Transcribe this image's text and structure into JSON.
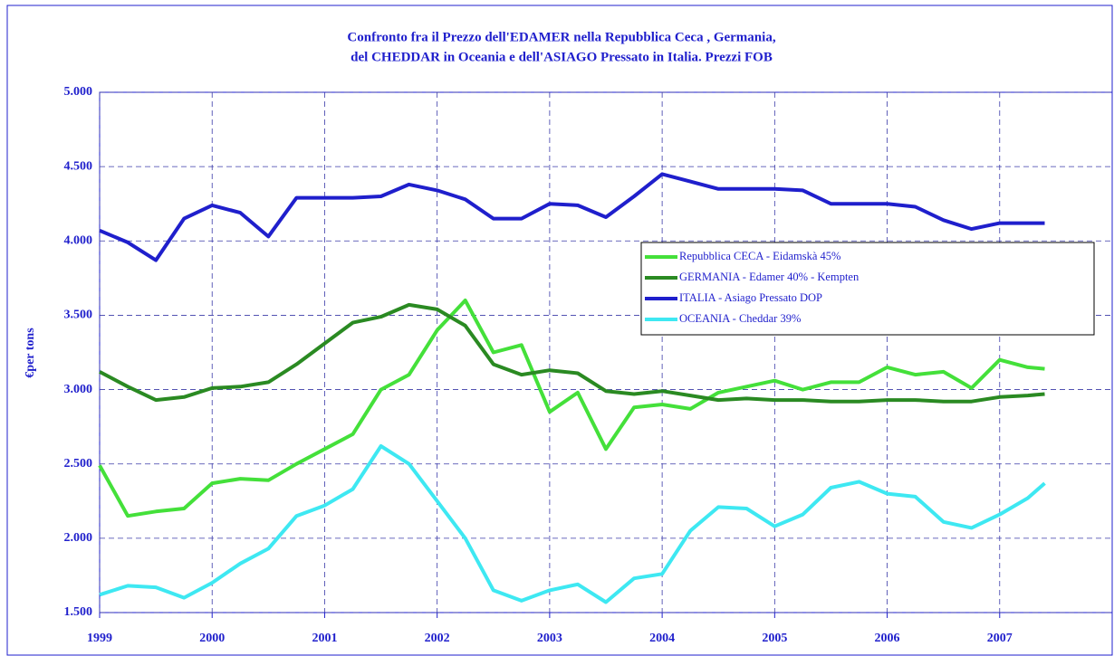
{
  "chart_data": {
    "type": "line",
    "title": [
      "Confronto fra il Prezzo dell'EDAMER nella Repubblica Ceca , Germania,",
      "del CHEDDAR in Oceania  e dell'ASIAGO Pressato in Italia.  Prezzi FOB"
    ],
    "y_label": "€per tons",
    "x": [
      1999,
      1999.25,
      1999.5,
      1999.75,
      2000,
      2000.25,
      2000.5,
      2000.75,
      2001,
      2001.25,
      2001.5,
      2001.75,
      2002,
      2002.25,
      2002.5,
      2002.75,
      2003,
      2003.25,
      2003.5,
      2003.75,
      2004,
      2004.25,
      2004.5,
      2004.75,
      2005,
      2005.25,
      2005.5,
      2005.75,
      2006,
      2006.25,
      2006.5,
      2006.75,
      2007,
      2007.25,
      2007.4
    ],
    "series": [
      {
        "name": "Repubblica CECA - Eidamskà 45%",
        "color": "#44e03a",
        "values": [
          2490,
          2150,
          2180,
          2200,
          2370,
          2400,
          2390,
          2500,
          2600,
          2700,
          3000,
          3100,
          3400,
          3600,
          3250,
          3300,
          2850,
          2980,
          2600,
          2880,
          2900,
          2870,
          2980,
          3020,
          3060,
          3000,
          3050,
          3050,
          3150,
          3100,
          3120,
          3010,
          3200,
          3150,
          3140
        ]
      },
      {
        "name": "GERMANIA - Edamer 40% - Kempten",
        "color": "#2a8a22",
        "values": [
          3120,
          3020,
          2930,
          2950,
          3010,
          3020,
          3050,
          3170,
          3310,
          3450,
          3490,
          3570,
          3540,
          3430,
          3170,
          3100,
          3130,
          3110,
          2990,
          2970,
          2990,
          2960,
          2930,
          2940,
          2930,
          2930,
          2920,
          2920,
          2930,
          2930,
          2920,
          2920,
          2950,
          2960,
          2970
        ]
      },
      {
        "name": "ITALIA - Asiago Pressato DOP",
        "color": "#1f1fcc",
        "values": [
          4070,
          3990,
          3870,
          4150,
          4240,
          4190,
          4030,
          4290,
          4290,
          4290,
          4300,
          4380,
          4340,
          4280,
          4150,
          4150,
          4250,
          4240,
          4160,
          4300,
          4450,
          4400,
          4350,
          4350,
          4350,
          4340,
          4250,
          4250,
          4250,
          4230,
          4140,
          4080,
          4120,
          4120,
          4120
        ]
      },
      {
        "name": "OCEANIA - Cheddar 39%",
        "color": "#3ee8f2",
        "values": [
          1620,
          1680,
          1670,
          1600,
          1700,
          1830,
          1930,
          2150,
          2220,
          2330,
          2620,
          2500,
          2250,
          2000,
          1650,
          1580,
          1650,
          1690,
          1570,
          1730,
          1760,
          2050,
          2210,
          2200,
          2080,
          2160,
          2340,
          2380,
          2300,
          2280,
          2110,
          2070,
          2160,
          2270,
          2370
        ]
      }
    ],
    "xlim": [
      1999,
      2008
    ],
    "xticks": [
      1999,
      2000,
      2001,
      2002,
      2003,
      2004,
      2005,
      2006,
      2007
    ],
    "ylim": [
      1500,
      5000
    ],
    "yticks": [
      {
        "value": 1500,
        "label": "1.500"
      },
      {
        "value": 2000,
        "label": "2.000"
      },
      {
        "value": 2500,
        "label": "2.500"
      },
      {
        "value": 3000,
        "label": "3.000"
      },
      {
        "value": 3500,
        "label": "3.500"
      },
      {
        "value": 4000,
        "label": "4.000"
      },
      {
        "value": 4500,
        "label": "4.500"
      },
      {
        "value": 5000,
        "label": "5.000"
      }
    ],
    "grid": true,
    "legend": "right"
  }
}
